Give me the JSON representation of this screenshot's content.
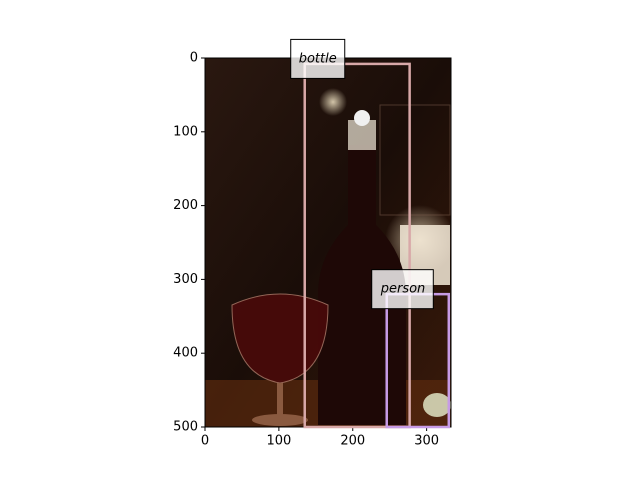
{
  "chart_data": {
    "type": "image",
    "xlim": [
      0,
      333
    ],
    "ylim": [
      500,
      0
    ],
    "xticks": [
      0,
      100,
      200,
      300
    ],
    "yticks": [
      0,
      100,
      200,
      300,
      400,
      500
    ],
    "boxes": [
      {
        "label": "bottle",
        "x": [
          135,
          277
        ],
        "y": [
          8,
          500
        ],
        "color": "#d8a8a8"
      },
      {
        "label": "person",
        "x": [
          246,
          330
        ],
        "y": [
          320,
          500
        ],
        "color": "#c79be6"
      }
    ]
  }
}
